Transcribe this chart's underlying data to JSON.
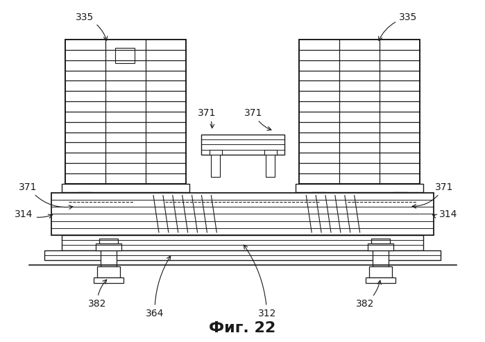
{
  "title": "Фиг. 22",
  "title_fontsize": 16,
  "background_color": "#ffffff",
  "line_color": "#1a1a1a",
  "fig_w": 6.99,
  "fig_h": 4.93,
  "dpi": 100
}
